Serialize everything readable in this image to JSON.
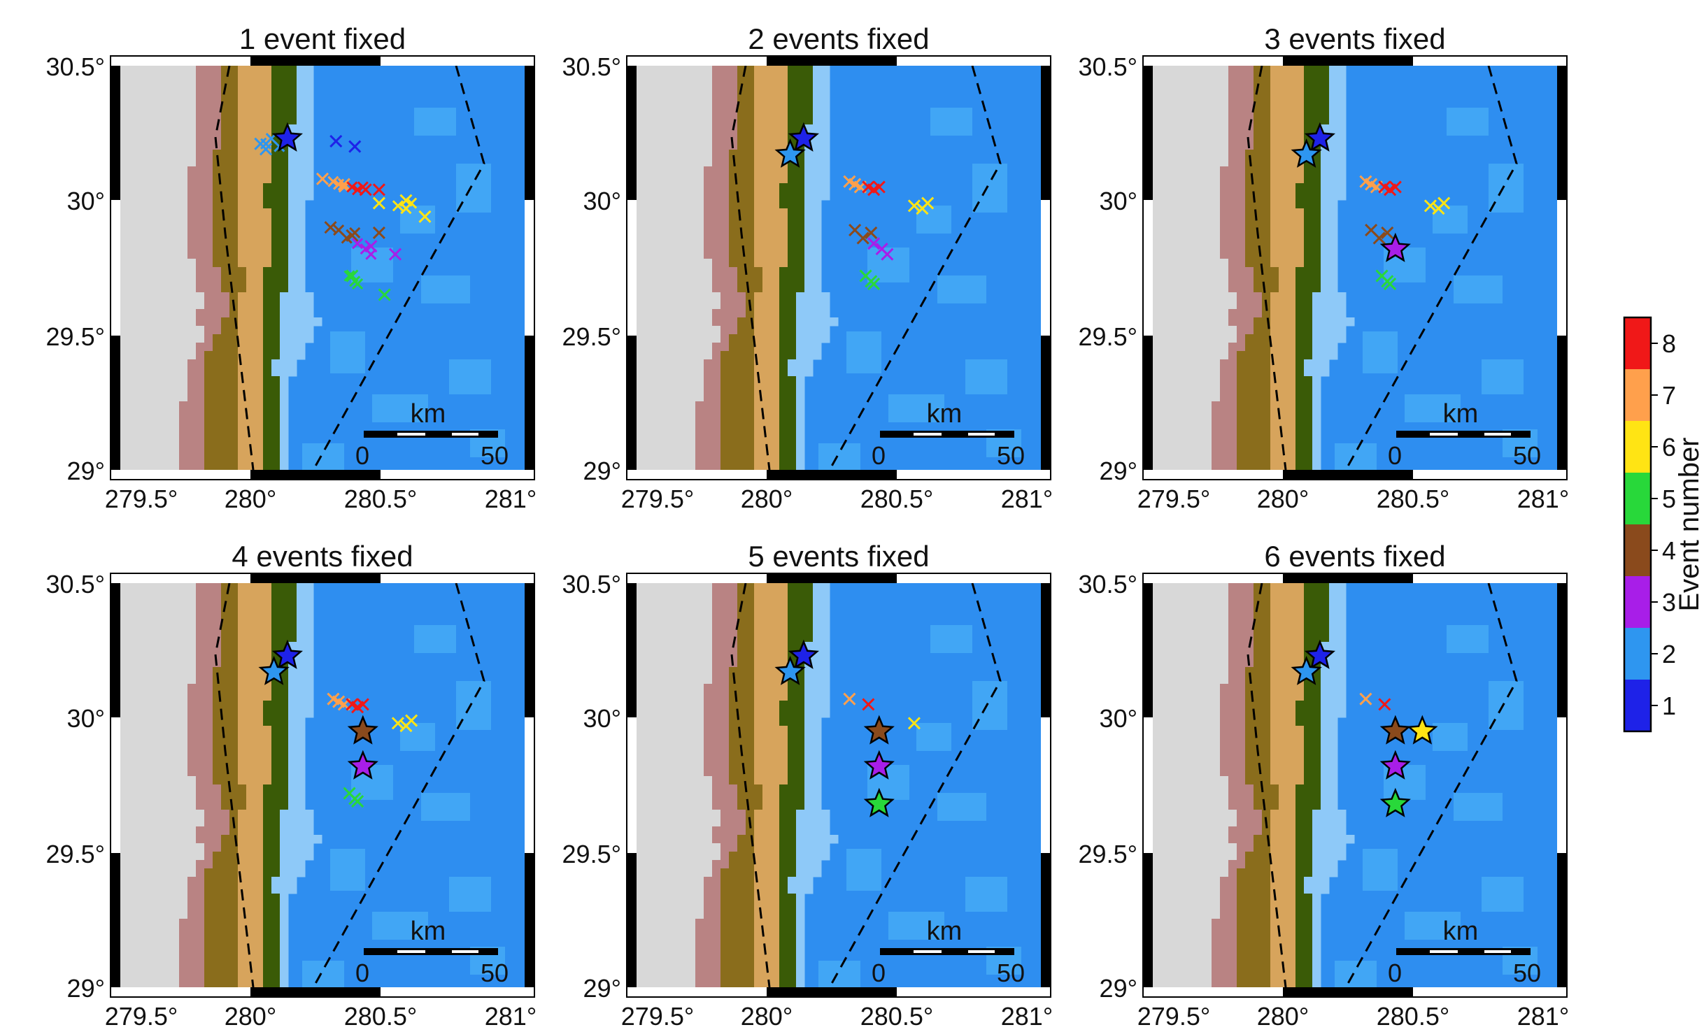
{
  "colors": {
    "land_gray": "#d8d8d8",
    "coast_pink": "#b98383",
    "olive": "#8a6d1c",
    "tan": "#d7a45c",
    "dark_green": "#3a5b07",
    "light_blue": "#8ec9f8",
    "mid_blue": "#41a6f5",
    "blue": "#2e8ef0"
  },
  "event_colors": [
    "#1e22e8",
    "#2e96f0",
    "#a81ee8",
    "#8a4a1c",
    "#28d83a",
    "#ffe414",
    "#ffa04c",
    "#f01818"
  ],
  "panels": [
    {
      "title": "1 event fixed",
      "fixed": 1
    },
    {
      "title": "2 events fixed",
      "fixed": 2
    },
    {
      "title": "3 events fixed",
      "fixed": 3
    },
    {
      "title": "4 events fixed",
      "fixed": 4
    },
    {
      "title": "5 events fixed",
      "fixed": 5
    },
    {
      "title": "6 events fixed",
      "fixed": 6
    }
  ],
  "axes": {
    "lon_range": [
      279.5,
      281.0
    ],
    "lat_range": [
      29.0,
      30.5
    ],
    "lon_ticks": [
      "279.5°",
      "280°",
      "280.5°",
      "281°"
    ],
    "lat_ticks": [
      "30.5°",
      "30°",
      "29.5°",
      "29°"
    ]
  },
  "scalebar": {
    "unit": "km",
    "start": "0",
    "end": "50"
  },
  "events": [
    {
      "id": 1,
      "lon": 280.12,
      "lat": 30.23
    },
    {
      "id": 2,
      "lon": 280.07,
      "lat": 30.17
    },
    {
      "id": 3,
      "lon": 280.4,
      "lat": 29.82
    },
    {
      "id": 4,
      "lon": 280.4,
      "lat": 29.95
    },
    {
      "id": 5,
      "lon": 280.4,
      "lat": 29.68
    },
    {
      "id": 6,
      "lon": 280.5,
      "lat": 29.95
    }
  ],
  "locations": {
    "1": [
      [
        280.28,
        30.22
      ],
      [
        280.31,
        30.21
      ],
      [
        280.34,
        30.2
      ]
    ],
    "2": [
      [
        280.04,
        30.21
      ],
      [
        280.06,
        30.23
      ],
      [
        280.09,
        30.2
      ]
    ],
    "3": [
      [
        280.38,
        29.84
      ],
      [
        280.41,
        29.82
      ],
      [
        280.43,
        29.8
      ]
    ],
    "4": [
      [
        280.31,
        29.89
      ],
      [
        280.34,
        29.86
      ],
      [
        280.37,
        29.88
      ]
    ],
    "5": [
      [
        280.35,
        29.72
      ],
      [
        280.37,
        29.7
      ],
      [
        280.38,
        29.69
      ]
    ],
    "6": [
      [
        280.53,
        29.98
      ],
      [
        280.56,
        29.97
      ],
      [
        280.58,
        29.99
      ]
    ],
    "7": [
      [
        280.29,
        30.07
      ],
      [
        280.31,
        30.06
      ],
      [
        280.33,
        30.05
      ]
    ],
    "8": [
      [
        280.36,
        30.05
      ],
      [
        280.38,
        30.04
      ],
      [
        280.4,
        30.05
      ]
    ]
  },
  "initial_locations": {
    "1": [
      [
        280.3,
        30.22
      ],
      [
        280.37,
        30.2
      ]
    ],
    "2": [
      [
        280.02,
        30.21
      ],
      [
        280.04,
        30.19
      ]
    ],
    "3": [
      [
        280.43,
        29.83
      ],
      [
        280.52,
        29.8
      ]
    ],
    "4": [
      [
        280.28,
        29.9
      ],
      [
        280.36,
        29.87
      ],
      [
        280.46,
        29.88
      ]
    ],
    "5": [
      [
        280.36,
        29.72
      ],
      [
        280.48,
        29.65
      ]
    ],
    "6": [
      [
        280.46,
        29.99
      ],
      [
        280.56,
        30.0
      ],
      [
        280.63,
        29.94
      ]
    ],
    "7": [
      [
        280.25,
        30.08
      ],
      [
        280.33,
        30.06
      ]
    ],
    "8": [
      [
        280.41,
        30.04
      ],
      [
        280.46,
        30.04
      ]
    ]
  },
  "colorbar": {
    "label": "Event number",
    "ticks": [
      "8",
      "7",
      "6",
      "5",
      "4",
      "3",
      "2",
      "1"
    ]
  }
}
